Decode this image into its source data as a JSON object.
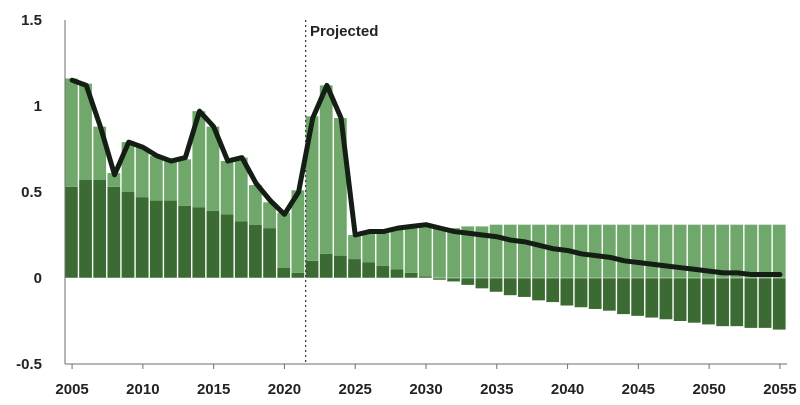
{
  "chart_data": {
    "type": "bar",
    "annotation": "Projected",
    "projection_start_year": 2021.5,
    "x_ticks": [
      2005,
      2010,
      2015,
      2020,
      2025,
      2030,
      2035,
      2040,
      2045,
      2050,
      2055
    ],
    "y_ticks": [
      {
        "value": -0.5,
        "label": "-0.5"
      },
      {
        "value": 0,
        "label": "0"
      },
      {
        "value": 0.5,
        "label": "0.5"
      },
      {
        "value": 1,
        "label": "1"
      },
      {
        "value": 1.5,
        "label": "1.5"
      }
    ],
    "ylim": [
      -0.5,
      1.5
    ],
    "xlim": [
      2004.5,
      2055.5
    ],
    "grid": false,
    "years": [
      2005,
      2006,
      2007,
      2008,
      2009,
      2010,
      2011,
      2012,
      2013,
      2014,
      2015,
      2016,
      2017,
      2018,
      2019,
      2020,
      2021,
      2022,
      2023,
      2024,
      2025,
      2026,
      2027,
      2028,
      2029,
      2030,
      2031,
      2032,
      2033,
      2034,
      2035,
      2036,
      2037,
      2038,
      2039,
      2040,
      2041,
      2042,
      2043,
      2044,
      2045,
      2046,
      2047,
      2048,
      2049,
      2050,
      2051,
      2052,
      2053,
      2054,
      2055
    ],
    "series": [
      {
        "values": [
          0.53,
          0.57,
          0.57,
          0.53,
          0.5,
          0.47,
          0.45,
          0.45,
          0.42,
          0.41,
          0.39,
          0.37,
          0.33,
          0.31,
          0.29,
          0.06,
          0.03,
          0.1,
          0.14,
          0.13,
          0.11,
          0.09,
          0.07,
          0.05,
          0.03,
          0.01,
          -0.01,
          -0.02,
          -0.04,
          -0.06,
          -0.08,
          -0.1,
          -0.11,
          -0.13,
          -0.14,
          -0.16,
          -0.17,
          -0.18,
          -0.19,
          -0.21,
          -0.22,
          -0.23,
          -0.24,
          -0.25,
          -0.26,
          -0.27,
          -0.28,
          -0.28,
          -0.29,
          -0.29,
          -0.3
        ]
      },
      {
        "values": [
          0.63,
          0.56,
          0.31,
          0.08,
          0.29,
          0.29,
          0.26,
          0.23,
          0.27,
          0.56,
          0.49,
          0.31,
          0.37,
          0.23,
          0.15,
          0.32,
          0.48,
          0.84,
          0.98,
          0.8,
          0.14,
          0.17,
          0.19,
          0.23,
          0.26,
          0.29,
          0.29,
          0.29,
          0.3,
          0.3,
          0.31,
          0.31,
          0.31,
          0.31,
          0.31,
          0.31,
          0.31,
          0.31,
          0.31,
          0.31,
          0.31,
          0.31,
          0.31,
          0.31,
          0.31,
          0.31,
          0.31,
          0.31,
          0.31,
          0.31,
          0.31
        ]
      },
      {
        "values": [
          1.15,
          1.12,
          0.88,
          0.6,
          0.79,
          0.76,
          0.71,
          0.68,
          0.7,
          0.97,
          0.88,
          0.68,
          0.7,
          0.55,
          0.45,
          0.37,
          0.5,
          0.93,
          1.12,
          0.93,
          0.25,
          0.27,
          0.27,
          0.29,
          0.3,
          0.31,
          0.29,
          0.27,
          0.26,
          0.25,
          0.24,
          0.22,
          0.21,
          0.19,
          0.17,
          0.16,
          0.14,
          0.13,
          0.12,
          0.1,
          0.09,
          0.08,
          0.07,
          0.06,
          0.05,
          0.04,
          0.03,
          0.03,
          0.02,
          0.02,
          0.02
        ]
      }
    ],
    "colors": {
      "dark_bar": "#3b6b33",
      "light_bar": "#6fa86a",
      "line": "#141e14",
      "axis": "#6e6e6e",
      "divider": "#ffffff",
      "projection_line": "#333333"
    }
  }
}
